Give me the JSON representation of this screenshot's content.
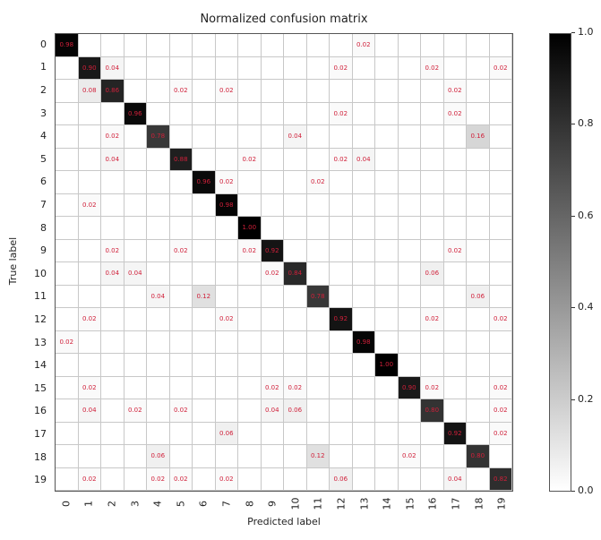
{
  "chart_data": {
    "type": "heatmap",
    "title": "Normalized confusion matrix",
    "xlabel": "Predicted label",
    "ylabel": "True label",
    "labels": [
      "0",
      "1",
      "2",
      "3",
      "4",
      "5",
      "6",
      "7",
      "8",
      "9",
      "10",
      "11",
      "12",
      "13",
      "14",
      "15",
      "16",
      "17",
      "18",
      "19"
    ],
    "colormap": "Greys",
    "colorbar": {
      "min": 0.0,
      "max": 1.0,
      "ticks": [
        "0.0",
        "0.2",
        "0.4",
        "0.6",
        "0.8",
        "1.0"
      ]
    },
    "text_color": "#d0203a",
    "matrix": [
      [
        0.98,
        0,
        0,
        0,
        0,
        0,
        0,
        0,
        0,
        0,
        0,
        0,
        0,
        0.02,
        0,
        0,
        0,
        0,
        0,
        0
      ],
      [
        0,
        0.9,
        0.04,
        0,
        0,
        0,
        0,
        0,
        0,
        0,
        0,
        0,
        0.02,
        0,
        0,
        0,
        0.02,
        0,
        0,
        0.02
      ],
      [
        0,
        0.08,
        0.86,
        0,
        0,
        0.02,
        0,
        0.02,
        0,
        0,
        0,
        0,
        0,
        0,
        0,
        0,
        0,
        0.02,
        0,
        0
      ],
      [
        0,
        0,
        0,
        0.96,
        0,
        0,
        0,
        0,
        0,
        0,
        0,
        0,
        0.02,
        0,
        0,
        0,
        0,
        0.02,
        0,
        0
      ],
      [
        0,
        0,
        0.02,
        0,
        0.78,
        0,
        0,
        0,
        0,
        0,
        0.04,
        0,
        0,
        0,
        0,
        0,
        0,
        0,
        0.16,
        0
      ],
      [
        0,
        0,
        0.04,
        0,
        0,
        0.88,
        0,
        0,
        0.02,
        0,
        0,
        0,
        0.02,
        0.04,
        0,
        0,
        0,
        0,
        0,
        0
      ],
      [
        0,
        0,
        0,
        0,
        0,
        0,
        0.96,
        0.02,
        0,
        0,
        0,
        0.02,
        0,
        0,
        0,
        0,
        0,
        0,
        0,
        0
      ],
      [
        0,
        0.02,
        0,
        0,
        0,
        0,
        0,
        0.98,
        0,
        0,
        0,
        0,
        0,
        0,
        0,
        0,
        0,
        0,
        0,
        0
      ],
      [
        0,
        0,
        0,
        0,
        0,
        0,
        0,
        0,
        1.0,
        0,
        0,
        0,
        0,
        0,
        0,
        0,
        0,
        0,
        0,
        0
      ],
      [
        0,
        0,
        0.02,
        0,
        0,
        0.02,
        0,
        0,
        0.02,
        0.92,
        0,
        0,
        0,
        0,
        0,
        0,
        0,
        0.02,
        0,
        0
      ],
      [
        0,
        0,
        0.04,
        0.04,
        0,
        0,
        0,
        0,
        0,
        0.02,
        0.84,
        0,
        0,
        0,
        0,
        0,
        0.06,
        0,
        0,
        0
      ],
      [
        0,
        0,
        0,
        0,
        0.04,
        0,
        0.12,
        0,
        0,
        0,
        0,
        0.78,
        0,
        0,
        0,
        0,
        0,
        0,
        0.06,
        0
      ],
      [
        0,
        0.02,
        0,
        0,
        0,
        0,
        0,
        0.02,
        0,
        0,
        0,
        0,
        0.92,
        0,
        0,
        0,
        0.02,
        0,
        0,
        0.02
      ],
      [
        0.02,
        0,
        0,
        0,
        0,
        0,
        0,
        0,
        0,
        0,
        0,
        0,
        0,
        0.98,
        0,
        0,
        0,
        0,
        0,
        0
      ],
      [
        0,
        0,
        0,
        0,
        0,
        0,
        0,
        0,
        0,
        0,
        0,
        0,
        0,
        0,
        1.0,
        0,
        0,
        0,
        0,
        0
      ],
      [
        0,
        0.02,
        0,
        0,
        0,
        0,
        0,
        0,
        0,
        0.02,
        0.02,
        0,
        0,
        0,
        0,
        0.9,
        0.02,
        0,
        0,
        0.02
      ],
      [
        0,
        0.04,
        0,
        0.02,
        0,
        0.02,
        0,
        0,
        0,
        0.04,
        0.06,
        0,
        0,
        0,
        0,
        0,
        0.8,
        0,
        0,
        0.02
      ],
      [
        0,
        0,
        0,
        0,
        0,
        0,
        0,
        0.06,
        0,
        0,
        0,
        0,
        0,
        0,
        0,
        0,
        0,
        0.92,
        0,
        0.02
      ],
      [
        0,
        0,
        0,
        0,
        0.06,
        0,
        0,
        0,
        0,
        0,
        0,
        0.12,
        0,
        0,
        0,
        0.02,
        0,
        0,
        0.8,
        0
      ],
      [
        0,
        0.02,
        0,
        0,
        0.02,
        0.02,
        0,
        0.02,
        0,
        0,
        0,
        0,
        0.06,
        0,
        0,
        0,
        0,
        0.04,
        0,
        0.82
      ]
    ]
  }
}
